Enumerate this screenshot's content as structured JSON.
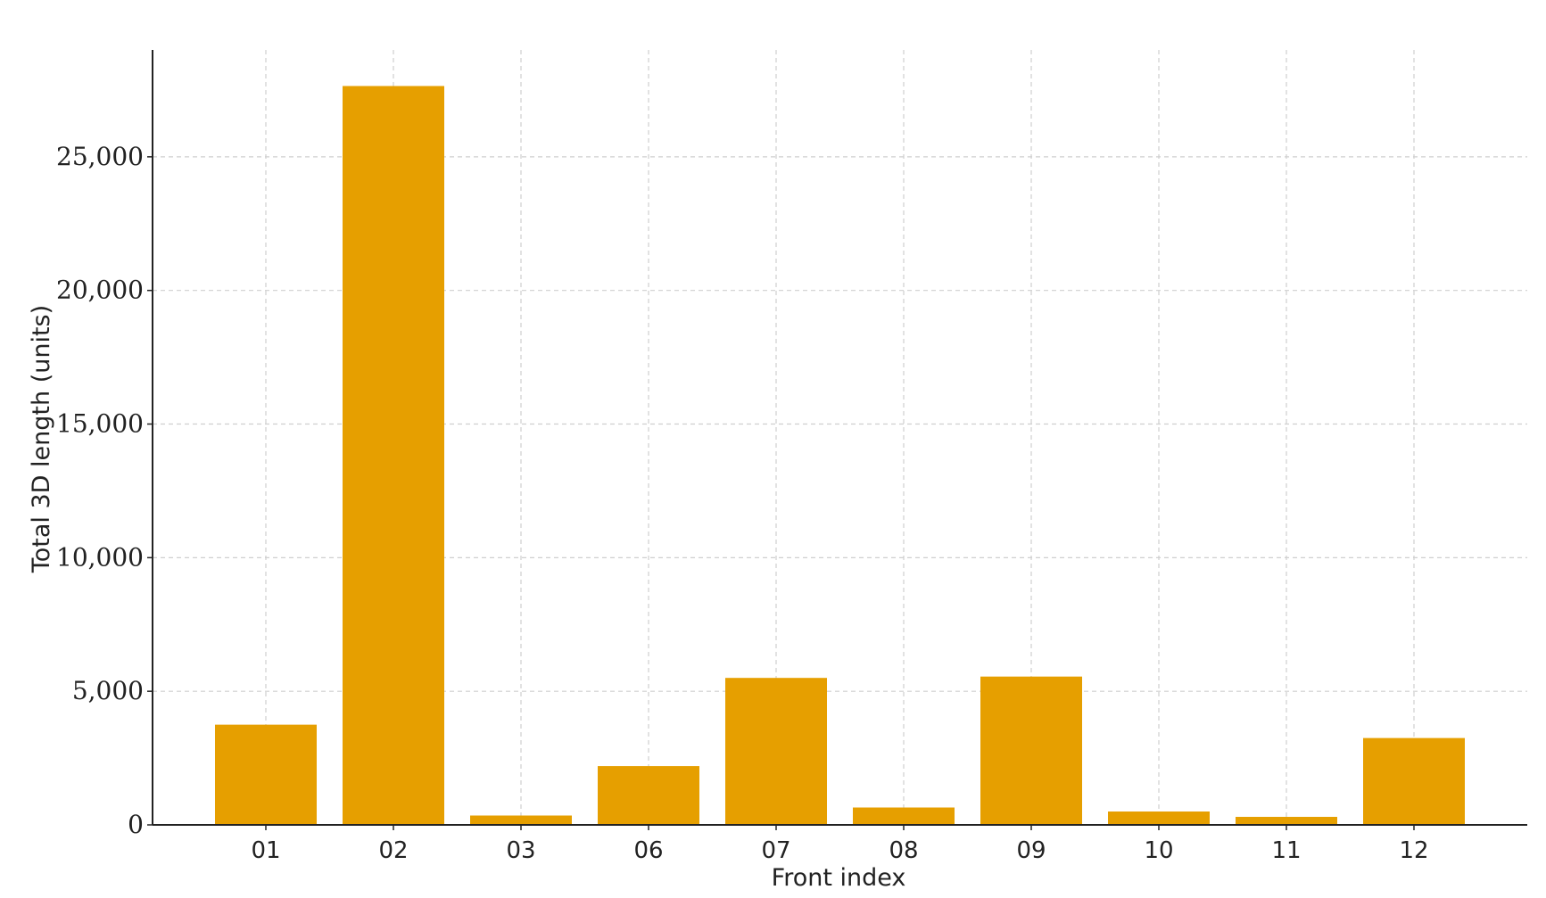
{
  "chart_data": {
    "type": "bar",
    "title": "",
    "xlabel": "Front index",
    "ylabel": "Total 3D length (units)",
    "categories": [
      "01",
      "02",
      "03",
      "06",
      "07",
      "08",
      "09",
      "10",
      "11",
      "12"
    ],
    "values": [
      3750,
      27650,
      350,
      2200,
      5500,
      650,
      5550,
      500,
      300,
      3250
    ],
    "ylim": [
      0,
      29000
    ],
    "yticks": [
      0,
      5000,
      10000,
      15000,
      20000,
      25000
    ],
    "ytick_labels": [
      "0",
      "5,000",
      "10,000",
      "15,000",
      "20,000",
      "25,000"
    ],
    "grid": true,
    "legend": "none",
    "bar_color": "#E69F00"
  }
}
